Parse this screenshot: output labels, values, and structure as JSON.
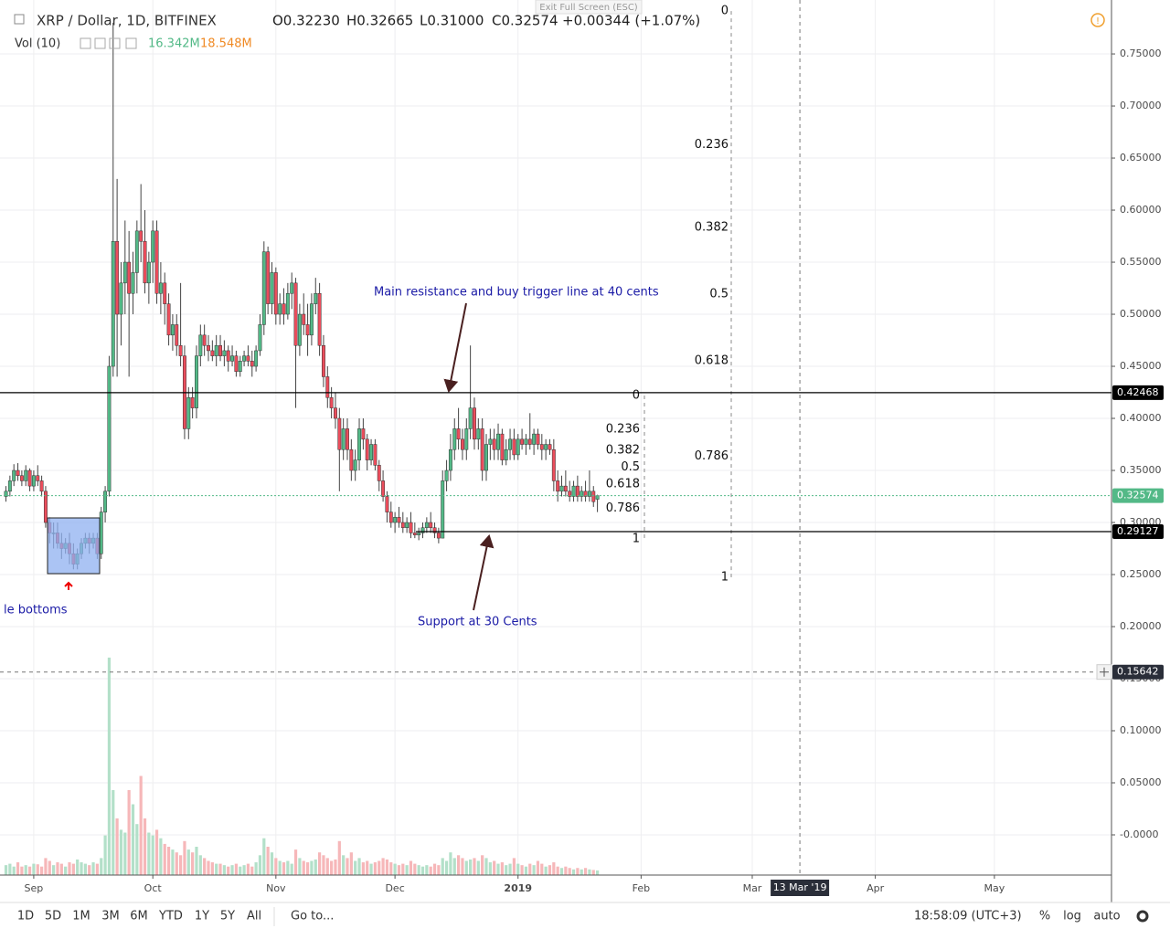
{
  "exit_fullscreen": "Exit Full Screen (ESC)",
  "chart_data": {
    "type": "candlestick",
    "title": "XRP / Dollar, 1D, BITFINEX",
    "ohlc_legend": [
      "O0.32230",
      "H0.32665",
      "L0.31000",
      "C0.32574"
    ],
    "change": "+0.00344 (+1.07%)",
    "volume_label": "Vol (10)",
    "volume_legend": [
      "16.342M",
      "18.548M"
    ],
    "up_color": "#53b987",
    "down_color": "#eb4d5c",
    "volume_up_color": "#b3e0c9",
    "volume_down_color": "#f6b7b9",
    "candles": [
      [
        0.325,
        0.335,
        0.32,
        0.33
      ],
      [
        0.33,
        0.345,
        0.325,
        0.34
      ],
      [
        0.34,
        0.356,
        0.335,
        0.35
      ],
      [
        0.35,
        0.357,
        0.34,
        0.345
      ],
      [
        0.345,
        0.35,
        0.335,
        0.34
      ],
      [
        0.34,
        0.355,
        0.335,
        0.35
      ],
      [
        0.35,
        0.352,
        0.33,
        0.335
      ],
      [
        0.335,
        0.35,
        0.33,
        0.345
      ],
      [
        0.345,
        0.355,
        0.335,
        0.34
      ],
      [
        0.34,
        0.345,
        0.325,
        0.33
      ],
      [
        0.33,
        0.335,
        0.295,
        0.3
      ],
      [
        0.3,
        0.305,
        0.28,
        0.29
      ],
      [
        0.29,
        0.3,
        0.275,
        0.29
      ],
      [
        0.29,
        0.3,
        0.275,
        0.28
      ],
      [
        0.28,
        0.29,
        0.265,
        0.275
      ],
      [
        0.275,
        0.285,
        0.27,
        0.28
      ],
      [
        0.28,
        0.29,
        0.26,
        0.27
      ],
      [
        0.27,
        0.28,
        0.255,
        0.26
      ],
      [
        0.26,
        0.275,
        0.255,
        0.27
      ],
      [
        0.27,
        0.285,
        0.265,
        0.28
      ],
      [
        0.28,
        0.29,
        0.275,
        0.285
      ],
      [
        0.285,
        0.29,
        0.27,
        0.28
      ],
      [
        0.28,
        0.29,
        0.275,
        0.285
      ],
      [
        0.285,
        0.29,
        0.265,
        0.27
      ],
      [
        0.27,
        0.315,
        0.265,
        0.31
      ],
      [
        0.31,
        0.335,
        0.3,
        0.33
      ],
      [
        0.33,
        0.46,
        0.325,
        0.45
      ],
      [
        0.45,
        0.78,
        0.44,
        0.57
      ],
      [
        0.57,
        0.63,
        0.44,
        0.5
      ],
      [
        0.5,
        0.55,
        0.47,
        0.53
      ],
      [
        0.53,
        0.59,
        0.5,
        0.55
      ],
      [
        0.55,
        0.58,
        0.44,
        0.52
      ],
      [
        0.52,
        0.56,
        0.5,
        0.54
      ],
      [
        0.54,
        0.59,
        0.52,
        0.58
      ],
      [
        0.58,
        0.625,
        0.55,
        0.57
      ],
      [
        0.57,
        0.6,
        0.52,
        0.53
      ],
      [
        0.53,
        0.56,
        0.51,
        0.55
      ],
      [
        0.55,
        0.59,
        0.53,
        0.58
      ],
      [
        0.58,
        0.59,
        0.51,
        0.52
      ],
      [
        0.52,
        0.55,
        0.5,
        0.53
      ],
      [
        0.53,
        0.54,
        0.49,
        0.51
      ],
      [
        0.51,
        0.52,
        0.47,
        0.48
      ],
      [
        0.48,
        0.5,
        0.465,
        0.49
      ],
      [
        0.49,
        0.5,
        0.46,
        0.47
      ],
      [
        0.47,
        0.53,
        0.45,
        0.46
      ],
      [
        0.46,
        0.47,
        0.38,
        0.39
      ],
      [
        0.39,
        0.43,
        0.38,
        0.42
      ],
      [
        0.42,
        0.43,
        0.4,
        0.41
      ],
      [
        0.41,
        0.47,
        0.4,
        0.46
      ],
      [
        0.46,
        0.49,
        0.45,
        0.48
      ],
      [
        0.48,
        0.49,
        0.46,
        0.47
      ],
      [
        0.47,
        0.48,
        0.455,
        0.465
      ],
      [
        0.465,
        0.475,
        0.455,
        0.46
      ],
      [
        0.46,
        0.48,
        0.45,
        0.47
      ],
      [
        0.47,
        0.48,
        0.455,
        0.46
      ],
      [
        0.46,
        0.475,
        0.45,
        0.465
      ],
      [
        0.465,
        0.47,
        0.445,
        0.455
      ],
      [
        0.455,
        0.47,
        0.45,
        0.46
      ],
      [
        0.46,
        0.465,
        0.44,
        0.445
      ],
      [
        0.445,
        0.46,
        0.44,
        0.455
      ],
      [
        0.455,
        0.465,
        0.45,
        0.46
      ],
      [
        0.46,
        0.47,
        0.45,
        0.455
      ],
      [
        0.455,
        0.465,
        0.44,
        0.45
      ],
      [
        0.45,
        0.47,
        0.445,
        0.465
      ],
      [
        0.465,
        0.5,
        0.46,
        0.49
      ],
      [
        0.49,
        0.57,
        0.48,
        0.56
      ],
      [
        0.56,
        0.565,
        0.5,
        0.51
      ],
      [
        0.51,
        0.55,
        0.5,
        0.54
      ],
      [
        0.54,
        0.545,
        0.49,
        0.5
      ],
      [
        0.5,
        0.52,
        0.49,
        0.51
      ],
      [
        0.51,
        0.525,
        0.49,
        0.5
      ],
      [
        0.5,
        0.53,
        0.495,
        0.52
      ],
      [
        0.52,
        0.54,
        0.505,
        0.53
      ],
      [
        0.53,
        0.535,
        0.41,
        0.47
      ],
      [
        0.47,
        0.51,
        0.46,
        0.5
      ],
      [
        0.5,
        0.52,
        0.48,
        0.49
      ],
      [
        0.49,
        0.51,
        0.46,
        0.48
      ],
      [
        0.48,
        0.52,
        0.47,
        0.51
      ],
      [
        0.51,
        0.535,
        0.5,
        0.52
      ],
      [
        0.52,
        0.53,
        0.46,
        0.47
      ],
      [
        0.47,
        0.48,
        0.43,
        0.44
      ],
      [
        0.44,
        0.45,
        0.41,
        0.42
      ],
      [
        0.42,
        0.43,
        0.4,
        0.41
      ],
      [
        0.41,
        0.425,
        0.39,
        0.4
      ],
      [
        0.4,
        0.41,
        0.33,
        0.37
      ],
      [
        0.37,
        0.4,
        0.36,
        0.39
      ],
      [
        0.39,
        0.4,
        0.36,
        0.37
      ],
      [
        0.37,
        0.38,
        0.34,
        0.35
      ],
      [
        0.35,
        0.37,
        0.34,
        0.36
      ],
      [
        0.36,
        0.4,
        0.35,
        0.39
      ],
      [
        0.39,
        0.4,
        0.37,
        0.38
      ],
      [
        0.38,
        0.385,
        0.35,
        0.36
      ],
      [
        0.36,
        0.38,
        0.355,
        0.375
      ],
      [
        0.375,
        0.38,
        0.35,
        0.355
      ],
      [
        0.355,
        0.36,
        0.33,
        0.34
      ],
      [
        0.34,
        0.35,
        0.32,
        0.325
      ],
      [
        0.325,
        0.33,
        0.3,
        0.31
      ],
      [
        0.31,
        0.32,
        0.295,
        0.3
      ],
      [
        0.3,
        0.31,
        0.29,
        0.305
      ],
      [
        0.305,
        0.315,
        0.295,
        0.3
      ],
      [
        0.3,
        0.31,
        0.29,
        0.295
      ],
      [
        0.295,
        0.305,
        0.29,
        0.3
      ],
      [
        0.3,
        0.31,
        0.285,
        0.29
      ],
      [
        0.29,
        0.3,
        0.285,
        0.288
      ],
      [
        0.288,
        0.295,
        0.283,
        0.29
      ],
      [
        0.29,
        0.3,
        0.285,
        0.295
      ],
      [
        0.295,
        0.305,
        0.29,
        0.3
      ],
      [
        0.3,
        0.31,
        0.29,
        0.295
      ],
      [
        0.295,
        0.3,
        0.285,
        0.29
      ],
      [
        0.29,
        0.295,
        0.28,
        0.285
      ],
      [
        0.285,
        0.35,
        0.285,
        0.34
      ],
      [
        0.34,
        0.36,
        0.33,
        0.35
      ],
      [
        0.35,
        0.385,
        0.34,
        0.37
      ],
      [
        0.37,
        0.4,
        0.36,
        0.39
      ],
      [
        0.39,
        0.41,
        0.37,
        0.38
      ],
      [
        0.38,
        0.39,
        0.36,
        0.37
      ],
      [
        0.37,
        0.4,
        0.36,
        0.39
      ],
      [
        0.39,
        0.47,
        0.38,
        0.41
      ],
      [
        0.41,
        0.42,
        0.37,
        0.38
      ],
      [
        0.38,
        0.4,
        0.37,
        0.39
      ],
      [
        0.39,
        0.4,
        0.34,
        0.35
      ],
      [
        0.35,
        0.385,
        0.34,
        0.375
      ],
      [
        0.375,
        0.39,
        0.36,
        0.38
      ],
      [
        0.38,
        0.39,
        0.36,
        0.37
      ],
      [
        0.37,
        0.395,
        0.36,
        0.385
      ],
      [
        0.385,
        0.39,
        0.355,
        0.36
      ],
      [
        0.36,
        0.38,
        0.355,
        0.37
      ],
      [
        0.37,
        0.39,
        0.36,
        0.38
      ],
      [
        0.38,
        0.39,
        0.36,
        0.365
      ],
      [
        0.365,
        0.385,
        0.36,
        0.38
      ],
      [
        0.38,
        0.39,
        0.37,
        0.375
      ],
      [
        0.375,
        0.385,
        0.365,
        0.38
      ],
      [
        0.38,
        0.405,
        0.37,
        0.375
      ],
      [
        0.375,
        0.39,
        0.365,
        0.385
      ],
      [
        0.385,
        0.39,
        0.37,
        0.375
      ],
      [
        0.375,
        0.385,
        0.36,
        0.37
      ],
      [
        0.37,
        0.38,
        0.36,
        0.375
      ],
      [
        0.375,
        0.38,
        0.365,
        0.37
      ],
      [
        0.37,
        0.38,
        0.33,
        0.34
      ],
      [
        0.34,
        0.35,
        0.32,
        0.33
      ],
      [
        0.33,
        0.345,
        0.325,
        0.335
      ],
      [
        0.335,
        0.35,
        0.325,
        0.33
      ],
      [
        0.33,
        0.34,
        0.32,
        0.325
      ],
      [
        0.325,
        0.34,
        0.32,
        0.335
      ],
      [
        0.335,
        0.345,
        0.32,
        0.325
      ],
      [
        0.325,
        0.335,
        0.32,
        0.33
      ],
      [
        0.33,
        0.34,
        0.32,
        0.325
      ],
      [
        0.325,
        0.35,
        0.32,
        0.33
      ],
      [
        0.33,
        0.335,
        0.315,
        0.32
      ],
      [
        0.3223,
        0.32665,
        0.31,
        0.32574
      ]
    ],
    "volume": [
      35,
      40,
      30,
      45,
      30,
      35,
      30,
      40,
      38,
      30,
      60,
      50,
      35,
      45,
      40,
      30,
      45,
      40,
      55,
      45,
      40,
      35,
      45,
      40,
      60,
      140,
      768,
      300,
      200,
      160,
      150,
      300,
      250,
      180,
      350,
      200,
      150,
      140,
      160,
      130,
      110,
      100,
      90,
      80,
      70,
      120,
      90,
      80,
      100,
      70,
      60,
      50,
      45,
      40,
      40,
      35,
      30,
      35,
      40,
      30,
      35,
      40,
      30,
      45,
      70,
      130,
      100,
      80,
      60,
      50,
      45,
      50,
      40,
      90,
      60,
      50,
      45,
      50,
      55,
      80,
      70,
      60,
      50,
      55,
      120,
      70,
      60,
      80,
      50,
      60,
      45,
      50,
      40,
      45,
      50,
      60,
      55,
      45,
      40,
      35,
      40,
      35,
      50,
      40,
      35,
      30,
      35,
      30,
      40,
      35,
      60,
      50,
      80,
      60,
      70,
      60,
      50,
      55,
      60,
      50,
      70,
      60,
      45,
      50,
      40,
      45,
      35,
      40,
      60,
      40,
      35,
      30,
      40,
      35,
      50,
      40,
      30,
      35,
      45,
      30,
      25,
      30,
      25,
      20,
      25,
      20,
      25,
      20,
      18,
      16.342
    ],
    "xlim": [
      -1.5,
      278.5
    ],
    "xticks": [
      {
        "value": 7,
        "label": "Sep"
      },
      {
        "value": 37,
        "label": "Oct"
      },
      {
        "value": 68,
        "label": "Nov"
      },
      {
        "value": 98,
        "label": "Dec"
      },
      {
        "value": 129,
        "label": "2019"
      },
      {
        "value": 160,
        "label": "Feb"
      },
      {
        "value": 188,
        "label": "Mar"
      },
      {
        "value": 219,
        "label": "Apr"
      },
      {
        "value": 249,
        "label": "May"
      }
    ],
    "ylim": [
      -0.0386,
      0.8018
    ],
    "yticks": [
      {
        "value": 0.75,
        "label": "0.75000"
      },
      {
        "value": 0.7,
        "label": "0.70000"
      },
      {
        "value": 0.65,
        "label": "0.65000"
      },
      {
        "value": 0.6,
        "label": "0.60000"
      },
      {
        "value": 0.55,
        "label": "0.55000"
      },
      {
        "value": 0.5,
        "label": "0.50000"
      },
      {
        "value": 0.45,
        "label": "0.45000"
      },
      {
        "value": 0.4,
        "label": "0.40000"
      },
      {
        "value": 0.35,
        "label": "0.35000"
      },
      {
        "value": 0.3,
        "label": "0.30000"
      },
      {
        "value": 0.25,
        "label": "0.25000"
      },
      {
        "value": 0.2,
        "label": "0.20000"
      },
      {
        "value": 0.15,
        "label": "0.15000"
      },
      {
        "value": 0.1,
        "label": "0.10000"
      },
      {
        "value": 0.05,
        "label": "0.05000"
      },
      {
        "value": 0,
        "label": "-0.0000"
      }
    ],
    "grid": true,
    "price_lines": [
      {
        "value": 0.42468,
        "color": "#000000"
      },
      {
        "value": 0.29127,
        "color": "#000000"
      },
      {
        "value": 0.32574,
        "color": "#53b987"
      }
    ],
    "crosshair": {
      "value": 0.15642,
      "x": 200,
      "date": "13 Mar '19"
    },
    "fibonacci": {
      "levels": [
        0,
        0.236,
        0.382,
        0.5,
        0.618,
        0.786,
        1
      ],
      "sets": [
        {
          "high": 0.7912,
          "low": 0.2474
        },
        {
          "high": 0.4219,
          "low": 0.2842
        }
      ]
    },
    "annotations": [
      "Main resistance and buy trigger line at 40 cents",
      "Support at 30 Cents",
      "le bottoms"
    ]
  },
  "toolbar": {
    "ranges": [
      "1D",
      "5D",
      "1M",
      "3M",
      "6M",
      "YTD",
      "1Y",
      "5Y",
      "All"
    ],
    "goto": "Go to...",
    "time": "18:58:09 (UTC+3)",
    "options": [
      "%",
      "log",
      "auto"
    ]
  }
}
